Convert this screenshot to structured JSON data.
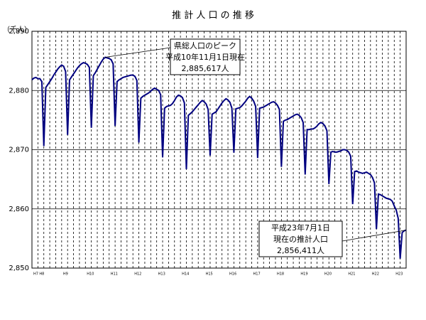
{
  "chart_data": {
    "type": "line",
    "title": "推 計 人 口 の 推 移",
    "y_label": "（千人）",
    "categories": [
      "H7",
      null,
      null,
      "H8",
      null,
      null,
      null,
      null,
      null,
      null,
      null,
      null,
      null,
      null,
      null,
      "H9",
      null,
      null,
      null,
      null,
      null,
      null,
      null,
      null,
      null,
      null,
      null,
      "H10",
      null,
      null,
      null,
      null,
      null,
      null,
      null,
      null,
      null,
      null,
      null,
      "H11",
      null,
      null,
      null,
      null,
      null,
      null,
      null,
      null,
      null,
      null,
      null,
      "H12",
      null,
      null,
      null,
      null,
      null,
      null,
      null,
      null,
      null,
      null,
      null,
      "H13",
      null,
      null,
      null,
      null,
      null,
      null,
      null,
      null,
      null,
      null,
      null,
      "H14",
      null,
      null,
      null,
      null,
      null,
      null,
      null,
      null,
      null,
      null,
      null,
      "H15",
      null,
      null,
      null,
      null,
      null,
      null,
      null,
      null,
      null,
      null,
      null,
      "H16",
      null,
      null,
      null,
      null,
      null,
      null,
      null,
      null,
      null,
      null,
      null,
      "H17",
      null,
      null,
      null,
      null,
      null,
      null,
      null,
      null,
      null,
      null,
      null,
      "H18",
      null,
      null,
      null,
      null,
      null,
      null,
      null,
      null,
      null,
      null,
      null,
      "H19",
      null,
      null,
      null,
      null,
      null,
      null,
      null,
      null,
      null,
      null,
      null,
      "H20",
      null,
      null,
      null,
      null,
      null,
      null,
      null,
      null,
      null,
      null,
      null,
      "H21",
      null,
      null,
      null,
      null,
      null,
      null,
      null,
      null,
      null,
      null,
      null,
      "H22",
      null,
      null,
      null,
      null,
      null,
      null,
      null,
      null,
      null,
      null,
      null,
      "H23",
      null,
      null,
      null,
      null,
      null,
      null
    ],
    "series": [
      {
        "color": "#000080",
        "values": [
          2881.8,
          2882.1,
          2882.2,
          2882.0,
          2882.0,
          2881.5,
          2870.6,
          2880.5,
          2881.0,
          2881.5,
          2882.0,
          2882.6,
          2883.1,
          2883.6,
          2884.0,
          2884.3,
          2884.1,
          2883.2,
          2872.5,
          2881.8,
          2882.3,
          2882.8,
          2883.3,
          2883.8,
          2884.2,
          2884.5,
          2884.7,
          2884.6,
          2884.4,
          2883.9,
          2873.7,
          2882.5,
          2883.0,
          2883.6,
          2884.2,
          2884.8,
          2885.3,
          2885.617,
          2885.5,
          2885.4,
          2885.2,
          2884.5,
          2874.0,
          2881.5,
          2881.8,
          2882.0,
          2882.2,
          2882.3,
          2882.4,
          2882.5,
          2882.6,
          2882.6,
          2882.4,
          2881.7,
          2871.2,
          2878.7,
          2879.0,
          2879.2,
          2879.4,
          2879.6,
          2879.9,
          2880.2,
          2880.4,
          2880.2,
          2880.0,
          2879.3,
          2868.7,
          2877.0,
          2877.3,
          2877.4,
          2877.5,
          2877.8,
          2878.3,
          2878.9,
          2879.2,
          2879.1,
          2878.8,
          2877.9,
          2866.7,
          2875.8,
          2876.1,
          2876.4,
          2876.8,
          2877.2,
          2877.6,
          2878.0,
          2878.3,
          2878.1,
          2877.7,
          2876.8,
          2869.0,
          2876.0,
          2876.2,
          2876.4,
          2876.9,
          2877.4,
          2877.9,
          2878.3,
          2878.6,
          2878.4,
          2878.0,
          2877.0,
          2869.5,
          2876.9,
          2877.0,
          2877.1,
          2877.4,
          2877.8,
          2878.2,
          2878.7,
          2879.0,
          2878.7,
          2878.2,
          2877.3,
          2868.6,
          2877.0,
          2877.1,
          2877.2,
          2877.4,
          2877.6,
          2877.8,
          2878.0,
          2878.1,
          2877.9,
          2877.5,
          2876.8,
          2867.1,
          2874.8,
          2875.0,
          2875.1,
          2875.3,
          2875.5,
          2875.7,
          2875.9,
          2876.0,
          2875.8,
          2875.4,
          2874.6,
          2865.8,
          2873.4,
          2873.4,
          2873.5,
          2873.5,
          2873.7,
          2874.0,
          2874.4,
          2874.6,
          2874.4,
          2874.0,
          2873.2,
          2864.2,
          2869.6,
          2869.7,
          2869.6,
          2869.6,
          2869.7,
          2869.8,
          2870.0,
          2870.0,
          2869.9,
          2869.6,
          2868.9,
          2860.8,
          2866.3,
          2866.4,
          2866.2,
          2866.1,
          2866.0,
          2866.1,
          2866.2,
          2866.0,
          2865.8,
          2865.3,
          2864.4,
          2856.6,
          2862.5,
          2862.4,
          2862.2,
          2862.0,
          2861.8,
          2861.7,
          2861.6,
          2861.3,
          2860.5,
          2859.8,
          2858.4,
          2851.6,
          2856.0,
          2856.3,
          2856.411
        ]
      }
    ],
    "ylim": [
      2850,
      2890
    ],
    "yticks": [
      {
        "value": 2850,
        "label": "2,850"
      },
      {
        "value": 2860,
        "label": "2,860"
      },
      {
        "value": 2870,
        "label": "2,870"
      },
      {
        "value": 2880,
        "label": "2,880"
      },
      {
        "value": 2890,
        "label": "2,890"
      }
    ],
    "grid": true,
    "annotations": [
      {
        "point": 37,
        "lines": [
          "県総人口のピーク",
          "平成10年11月1日現在",
          "2,885,617人"
        ]
      },
      {
        "point": 189,
        "lines": [
          "平成23年7月1日",
          "現在の推計人口",
          "2,856,411人"
        ]
      }
    ]
  }
}
